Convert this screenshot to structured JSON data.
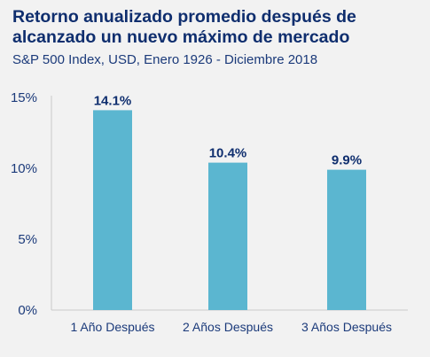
{
  "chart_data": {
    "type": "bar",
    "title": "Retorno anualizado promedio después de alcanzado un nuevo máximo de mercado",
    "subtitle": "S&P 500 Index, USD, Enero 1926 - Diciembre 2018",
    "categories": [
      "1 Año Después",
      "2 Años Después",
      "3 Años Después"
    ],
    "values": [
      14.1,
      10.4,
      9.9
    ],
    "data_labels": [
      "14.1%",
      "10.4%",
      "9.9%"
    ],
    "ylim": [
      0,
      15
    ],
    "yticks": [
      0,
      5,
      10,
      15
    ],
    "ytick_labels": [
      "0%",
      "5%",
      "10%",
      "15%"
    ],
    "xlabel": "",
    "ylabel": "",
    "grid": false,
    "colors": {
      "bar": "#5bb6d0",
      "title": "#0f2e6e",
      "data_label": "#0f2e6e",
      "axis": "#c9c9c9",
      "tick_text": "#1b3a7a"
    }
  }
}
